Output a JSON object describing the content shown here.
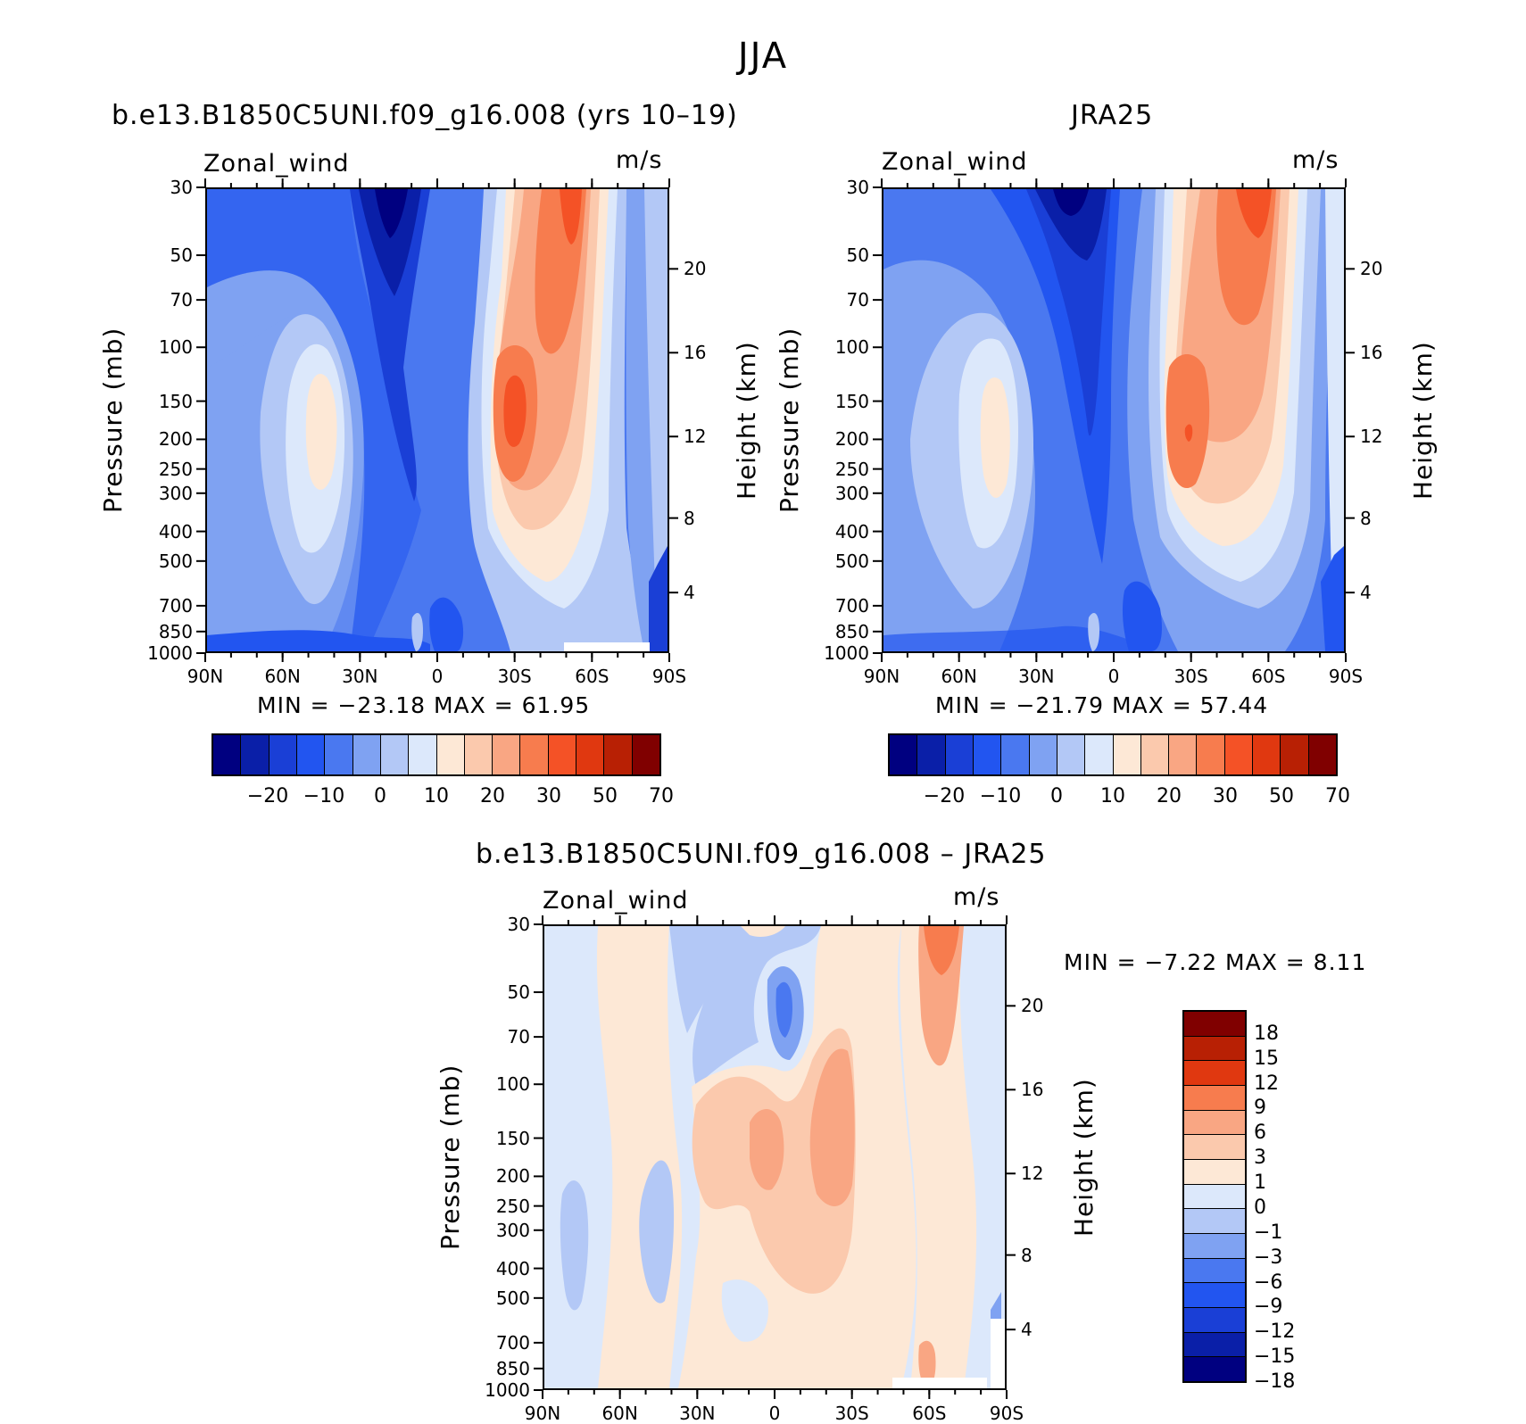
{
  "title": "JJA",
  "panels": [
    {
      "id": "model",
      "title": "b.e13.B1850C5UNI.f09_g16.008 (yrs 10–19)",
      "left_label": "Zonal_wind",
      "right_label": "m/s",
      "ylabel": "Pressure (mb)",
      "y2label": "Height (km)",
      "minmax": "MIN =  −23.18    MAX =    61.95"
    },
    {
      "id": "obs",
      "title": "JRA25",
      "left_label": "Zonal_wind",
      "right_label": "m/s",
      "ylabel": "Pressure (mb)",
      "y2label": "Height (km)",
      "minmax": "MIN =  −21.79    MAX =    57.44"
    },
    {
      "id": "diff",
      "title": "b.e13.B1850C5UNI.f09_g16.008 – JRA25",
      "left_label": "Zonal_wind",
      "right_label": "m/s",
      "ylabel": "Pressure (mb)",
      "y2label": "Height (km)",
      "minmax": "MIN =     −7.22    MAX =      8.11"
    }
  ],
  "axes": {
    "pressure_ticks": [
      "30",
      "50",
      "70",
      "100",
      "150",
      "200",
      "250",
      "300",
      "400",
      "500",
      "700",
      "850",
      "1000"
    ],
    "height_ticks": [
      "20",
      "16",
      "12",
      "8",
      "4"
    ],
    "lat_ticks": [
      "90N",
      "60N",
      "30N",
      "0",
      "30S",
      "60S",
      "90S"
    ]
  },
  "colorbar_main": {
    "colors": [
      "#000080",
      "#0a1fa8",
      "#1a3fd6",
      "#2255f0",
      "#4a78f0",
      "#7fa2f2",
      "#b3c8f6",
      "#dce8fb",
      "#fde8d6",
      "#fbc9ad",
      "#f9a683",
      "#f77c4e",
      "#f45226",
      "#e03810",
      "#b82004",
      "#800000"
    ],
    "labels": [
      "−20",
      "−10",
      "0",
      "10",
      "20",
      "30",
      "50",
      "70"
    ]
  },
  "colorbar_diff": {
    "colors": [
      "#800000",
      "#b82004",
      "#e03810",
      "#f77c4e",
      "#f9a683",
      "#fbc9ad",
      "#fde8d6",
      "#dce8fb",
      "#b3c8f6",
      "#7fa2f2",
      "#4a78f0",
      "#2255f0",
      "#1a3fd6",
      "#0a1fa8",
      "#000080"
    ],
    "labels": [
      "18",
      "15",
      "12",
      "9",
      "6",
      "3",
      "1",
      "0",
      "−1",
      "−3",
      "−6",
      "−9",
      "−12",
      "−15",
      "−18"
    ]
  },
  "chart_data": [
    {
      "type": "heatmap",
      "title": "b.e13.B1850C5UNI.f09_g16.008 (yrs 10–19)",
      "variable": "Zonal_wind",
      "units": "m/s",
      "xlabel": "",
      "ylabel": "Pressure (mb)",
      "y2label": "Height (km)",
      "x_ticks": [
        "90N",
        "60N",
        "30N",
        "0",
        "30S",
        "60S",
        "90S"
      ],
      "y_ticks": [
        30,
        50,
        70,
        100,
        150,
        200,
        250,
        300,
        400,
        500,
        700,
        850,
        1000
      ],
      "y2_ticks": [
        20,
        16,
        12,
        8,
        4
      ],
      "yscale": "log",
      "contour_levels": [
        -25,
        -20,
        -15,
        -10,
        -5,
        0,
        5,
        10,
        15,
        20,
        25,
        30,
        40,
        50,
        60,
        70,
        80
      ],
      "min": -23.18,
      "max": 61.95
    },
    {
      "type": "heatmap",
      "title": "JRA25",
      "variable": "Zonal_wind",
      "units": "m/s",
      "xlabel": "",
      "ylabel": "Pressure (mb)",
      "y2label": "Height (km)",
      "x_ticks": [
        "90N",
        "60N",
        "30N",
        "0",
        "30S",
        "60S",
        "90S"
      ],
      "y_ticks": [
        30,
        50,
        70,
        100,
        150,
        200,
        250,
        300,
        400,
        500,
        700,
        850,
        1000
      ],
      "y2_ticks": [
        20,
        16,
        12,
        8,
        4
      ],
      "yscale": "log",
      "contour_levels": [
        -25,
        -20,
        -15,
        -10,
        -5,
        0,
        5,
        10,
        15,
        20,
        25,
        30,
        40,
        50,
        60,
        70,
        80
      ],
      "min": -21.79,
      "max": 57.44
    },
    {
      "type": "heatmap",
      "title": "b.e13.B1850C5UNI.f09_g16.008 – JRA25",
      "variable": "Zonal_wind",
      "units": "m/s",
      "xlabel": "",
      "ylabel": "Pressure (mb)",
      "y2label": "Height (km)",
      "x_ticks": [
        "90N",
        "60N",
        "30N",
        "0",
        "30S",
        "60S",
        "90S"
      ],
      "y_ticks": [
        30,
        50,
        70,
        100,
        150,
        200,
        250,
        300,
        400,
        500,
        700,
        850,
        1000
      ],
      "y2_ticks": [
        20,
        16,
        12,
        8,
        4
      ],
      "yscale": "log",
      "contour_levels": [
        -18,
        -15,
        -12,
        -9,
        -6,
        -3,
        -1,
        0,
        1,
        3,
        6,
        9,
        12,
        15,
        18
      ],
      "min": -7.22,
      "max": 8.11
    }
  ]
}
